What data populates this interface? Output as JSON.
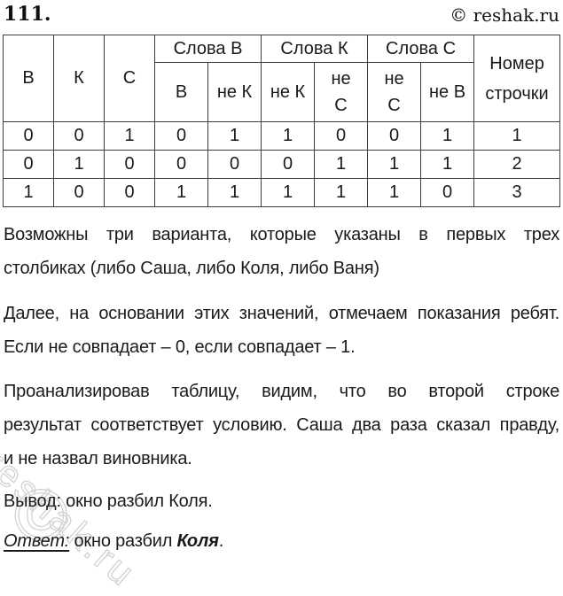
{
  "header": {
    "problem_number": "111.",
    "site_credit": "© reshak.ru"
  },
  "watermark": {
    "symbol": "©",
    "text": "reshak.ru"
  },
  "table": {
    "corner_headers": [
      "В",
      "К",
      "С"
    ],
    "group_headers": [
      "Слова В",
      "Слова К",
      "Слова С"
    ],
    "row_number_header": "Номер\nстрочки",
    "sub_headers": [
      "В",
      "не К",
      "не К",
      "не\nС",
      "не\nС",
      "не В"
    ],
    "rows": [
      [
        "0",
        "0",
        "1",
        "0",
        "1",
        "1",
        "0",
        "0",
        "1",
        "1"
      ],
      [
        "0",
        "1",
        "0",
        "0",
        "0",
        "0",
        "1",
        "1",
        "1",
        "2"
      ],
      [
        "1",
        "0",
        "0",
        "1",
        "1",
        "1",
        "1",
        "1",
        "0",
        "3"
      ]
    ]
  },
  "paragraphs": {
    "variants": {
      "lines": [
        "Возможны три варианта, которые указаны в первых трех",
        "столбиках (либо Саша, либо Коля, либо Ваня)"
      ]
    },
    "method": {
      "lines": [
        "Далее, на основании этих значений, отмечаем показания ребят.",
        "Если не совпадает – 0, если совпадает – 1."
      ]
    },
    "analysis": {
      "lines": [
        "Проанализировав таблицу, видим, что во второй строке",
        "результат соответствует условию. Саша два раза сказал правду,",
        "и не назвал виновника."
      ]
    },
    "conclusion": "Вывод: окно разбил Коля."
  },
  "answer": {
    "label": "Ответ:",
    "prefix": "окно разбил",
    "name": "Коля",
    "suffix": "."
  }
}
